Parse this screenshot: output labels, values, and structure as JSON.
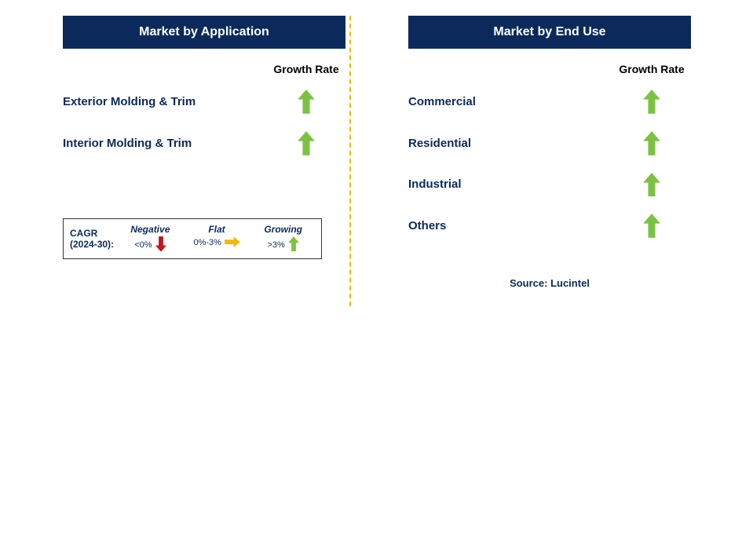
{
  "colors": {
    "header_bg": "#0b2a5b",
    "header_text": "#ffffff",
    "label_text": "#0b2a5b",
    "growth_arrow": "#7cc242",
    "flat_arrow": "#f6b800",
    "negative_arrow": "#c0161d",
    "divider": "#f6b800",
    "col_header": "#000000",
    "legend_border": "#333333"
  },
  "left_panel": {
    "title": "Market by Application",
    "col_header": "Growth Rate",
    "rows": [
      {
        "label": "Exterior Molding & Trim",
        "growth": "growing"
      },
      {
        "label": "Interior Molding & Trim",
        "growth": "growing"
      }
    ]
  },
  "right_panel": {
    "title": "Market by End Use",
    "col_header": "Growth Rate",
    "rows": [
      {
        "label": "Commercial",
        "growth": "growing"
      },
      {
        "label": "Residential",
        "growth": "growing"
      },
      {
        "label": "Industrial",
        "growth": "growing"
      },
      {
        "label": "Others",
        "growth": "growing"
      }
    ]
  },
  "legend": {
    "title": "CAGR\n(2024-30):",
    "items": [
      {
        "label": "Negative",
        "range": "<0%",
        "type": "negative"
      },
      {
        "label": "Flat",
        "range": "0%-3%",
        "type": "flat"
      },
      {
        "label": "Growing",
        "range": ">3%",
        "type": "growing"
      }
    ]
  },
  "source": "Source: Lucintel"
}
